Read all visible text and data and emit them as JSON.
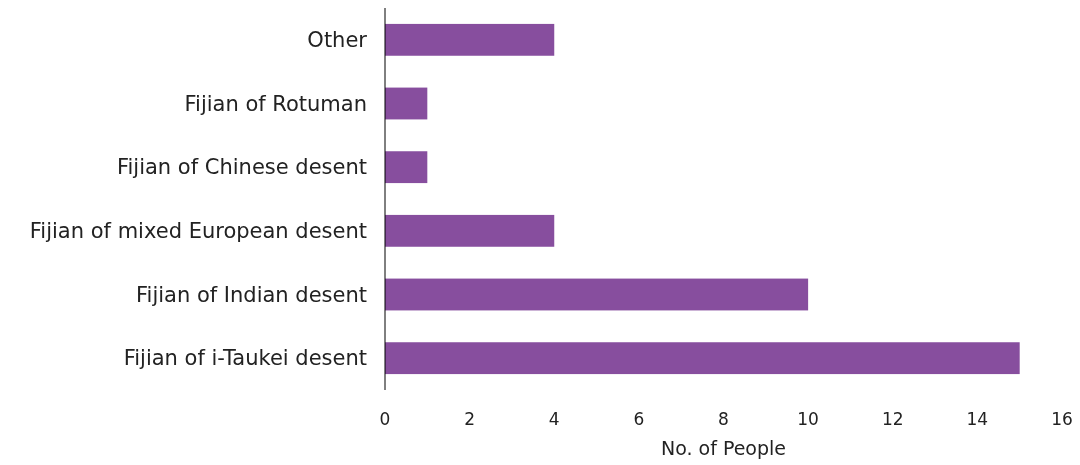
{
  "chart_data": {
    "type": "bar",
    "orientation": "horizontal",
    "xlabel": "No. of People",
    "categories": [
      "Other",
      "Fijian of Rotuman",
      "Fijian of Chinese desent",
      "Fijian of mixed European desent",
      "Fijian of Indian desent",
      "Fijian of i-Taukei desent"
    ],
    "values": [
      4,
      1,
      1,
      4,
      10,
      15
    ],
    "color": "#874e9e",
    "xlim": [
      0,
      16
    ],
    "xticks": [
      0,
      2,
      4,
      6,
      8,
      10,
      12,
      14,
      16
    ],
    "grid": false
  }
}
